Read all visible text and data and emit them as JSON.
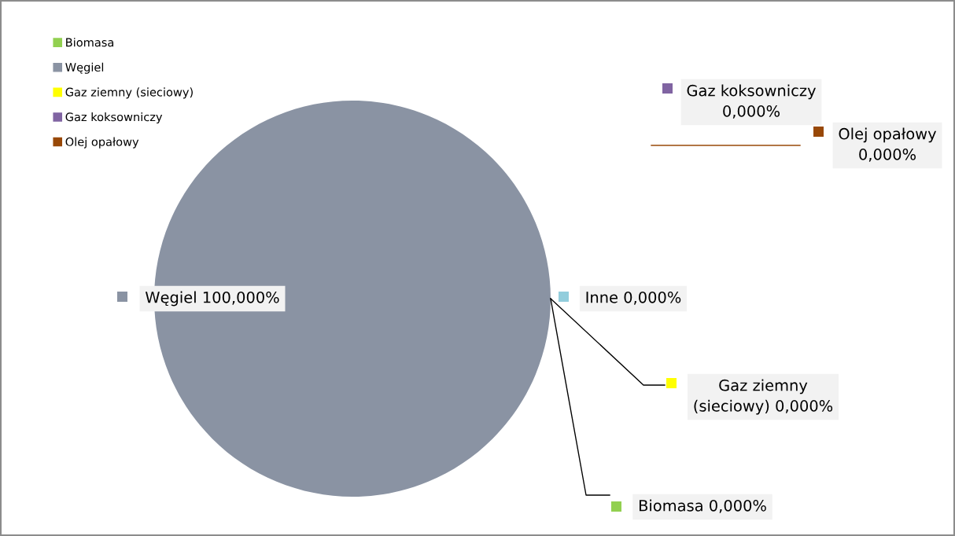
{
  "chart_data": {
    "type": "pie",
    "categories": [
      "Biomasa",
      "Węgiel",
      "Gaz ziemny (sieciowy)",
      "Gaz koksowniczy",
      "Olej opałowy",
      "Inne"
    ],
    "values": [
      0,
      100,
      0,
      0,
      0,
      0
    ],
    "colors": [
      "#92d050",
      "#8a93a3",
      "#ffff00",
      "#8064a2",
      "#984807",
      "#92cddc"
    ],
    "value_labels": [
      "0,000%",
      "100,000%",
      "0,000%",
      "0,000%",
      "0,000%",
      "0,000%"
    ],
    "legend": "top left"
  }
}
